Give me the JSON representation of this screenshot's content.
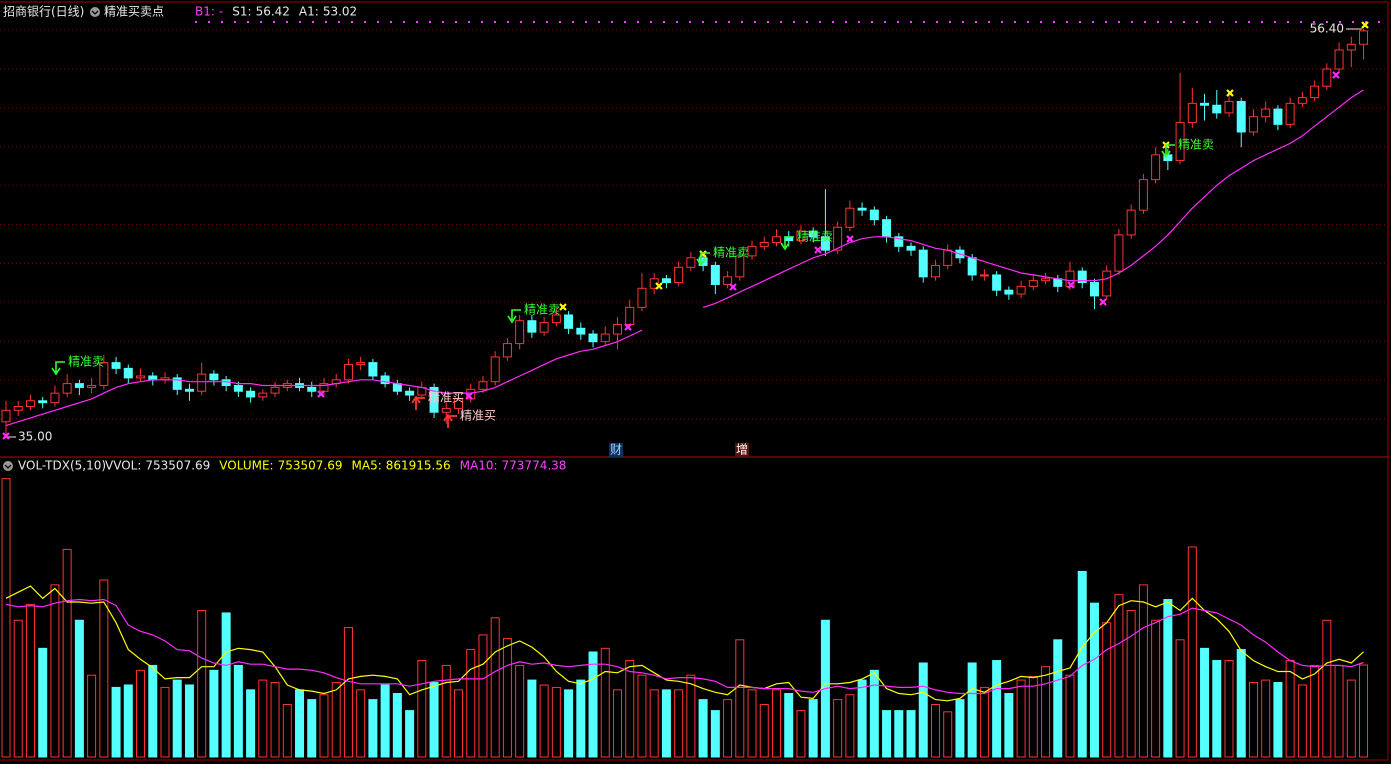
{
  "chart_data": [
    {
      "type": "candlestick",
      "title": "招商银行(日线)",
      "indicator": "精准买卖点",
      "legend": [
        {
          "label": "B1:",
          "value": "-",
          "color": "#ff40ff"
        },
        {
          "label": "S1:",
          "value": 56.42,
          "color": "#e8e8e8"
        },
        {
          "label": "A1:",
          "value": 53.02,
          "color": "#e8e8e8"
        }
      ],
      "open": [
        35.8,
        36.4,
        36.6,
        36.9,
        36.8,
        37.3,
        37.8,
        37.6,
        37.7,
        38.9,
        38.6,
        38.1,
        38.2,
        38.0,
        38.1,
        37.5,
        37.4,
        38.3,
        38.0,
        37.7,
        37.4,
        37.1,
        37.3,
        37.6,
        37.8,
        37.6,
        37.4,
        37.8,
        38.0,
        38.8,
        38.9,
        38.2,
        37.8,
        37.4,
        37.2,
        37.6,
        36.3,
        36.5,
        37.0,
        37.5,
        37.9,
        39.2,
        39.9,
        41.1,
        40.5,
        41.0,
        41.4,
        40.7,
        40.4,
        40.0,
        40.4,
        40.9,
        41.8,
        42.8,
        43.3,
        43.1,
        43.9,
        44.4,
        44.0,
        43.0,
        43.4,
        44.5,
        45.0,
        45.2,
        45.5,
        45.3,
        45.8,
        45.5,
        44.8,
        46.0,
        47.0,
        46.9,
        46.4,
        45.5,
        45.0,
        44.8,
        43.4,
        44.0,
        44.8,
        44.4,
        43.5,
        43.5,
        42.7,
        42.5,
        42.9,
        43.2,
        43.3,
        42.9,
        43.7,
        43.1,
        42.4,
        43.7,
        45.6,
        46.9,
        48.5,
        49.8,
        49.5,
        51.5,
        52.5,
        52.4,
        52.0,
        52.6,
        51.0,
        51.8,
        52.2,
        51.4,
        52.5,
        52.8,
        53.4,
        54.3,
        55.3,
        55.6
      ],
      "high": [
        36.9,
        36.9,
        37.2,
        37.1,
        37.7,
        38.3,
        38.0,
        38.1,
        39.3,
        39.2,
        38.8,
        38.6,
        38.4,
        38.4,
        38.3,
        37.8,
        38.9,
        38.5,
        38.2,
        37.9,
        37.6,
        37.5,
        37.9,
        38.0,
        38.1,
        37.9,
        38.1,
        38.3,
        39.1,
        39.2,
        39.1,
        38.4,
        38.0,
        37.6,
        37.9,
        37.8,
        36.8,
        37.3,
        37.8,
        38.2,
        39.5,
        40.2,
        41.4,
        41.4,
        41.3,
        41.8,
        41.6,
        41.0,
        40.6,
        40.8,
        41.3,
        42.2,
        43.6,
        43.6,
        43.5,
        44.2,
        44.7,
        44.6,
        44.2,
        43.7,
        44.8,
        45.3,
        45.5,
        45.9,
        45.8,
        46.1,
        46.0,
        48.0,
        46.3,
        47.4,
        47.3,
        47.1,
        46.6,
        45.7,
        45.2,
        45.0,
        44.3,
        45.1,
        45.0,
        44.6,
        43.8,
        43.7,
        42.9,
        43.2,
        43.5,
        43.6,
        43.5,
        44.2,
        43.9,
        43.3,
        44.0,
        45.9,
        47.2,
        48.8,
        50.2,
        50.1,
        54.1,
        53.3,
        53.0,
        53.2,
        53.0,
        52.8,
        52.2,
        52.6,
        52.4,
        52.8,
        53.1,
        53.7,
        54.6,
        55.7,
        56.0,
        56.4
      ],
      "low": [
        35.0,
        36.1,
        36.4,
        36.5,
        36.6,
        37.1,
        37.2,
        37.3,
        37.5,
        38.3,
        37.8,
        37.9,
        37.7,
        37.8,
        37.2,
        36.9,
        37.2,
        37.7,
        37.4,
        37.1,
        36.8,
        36.9,
        37.1,
        37.4,
        37.4,
        37.1,
        37.2,
        37.6,
        37.8,
        38.5,
        38.0,
        37.6,
        37.2,
        36.9,
        37.0,
        36.0,
        35.7,
        36.2,
        36.8,
        37.3,
        37.7,
        39.0,
        39.6,
        40.2,
        40.3,
        40.8,
        40.4,
        40.1,
        39.7,
        39.8,
        39.6,
        40.7,
        41.6,
        42.5,
        42.8,
        42.9,
        43.7,
        43.7,
        42.5,
        42.8,
        43.2,
        44.3,
        44.8,
        45.0,
        45.0,
        45.1,
        45.2,
        44.5,
        44.6,
        45.8,
        46.6,
        46.1,
        45.2,
        44.7,
        44.5,
        43.1,
        43.2,
        43.8,
        44.1,
        43.2,
        43.2,
        42.4,
        42.2,
        42.3,
        42.7,
        43.0,
        42.6,
        42.7,
        42.8,
        41.7,
        42.2,
        43.5,
        45.4,
        46.7,
        48.3,
        49.0,
        49.3,
        51.2,
        51.6,
        51.7,
        51.8,
        50.2,
        50.8,
        51.5,
        51.1,
        51.2,
        52.3,
        52.6,
        53.2,
        54.1,
        54.4,
        54.8
      ],
      "close": [
        36.4,
        36.6,
        36.9,
        36.8,
        37.3,
        37.8,
        37.6,
        37.7,
        38.9,
        38.6,
        38.1,
        38.2,
        38.0,
        38.1,
        37.5,
        37.4,
        38.3,
        38.0,
        37.7,
        37.4,
        37.1,
        37.3,
        37.6,
        37.8,
        37.6,
        37.4,
        37.8,
        38.0,
        38.8,
        38.9,
        38.2,
        37.8,
        37.4,
        37.2,
        37.6,
        36.3,
        36.5,
        37.0,
        37.5,
        37.9,
        39.2,
        39.9,
        41.1,
        40.5,
        41.0,
        41.4,
        40.7,
        40.4,
        40.0,
        40.4,
        40.9,
        41.8,
        42.8,
        43.3,
        43.1,
        43.9,
        44.4,
        44.0,
        43.0,
        43.4,
        44.5,
        45.0,
        45.2,
        45.5,
        45.3,
        45.8,
        45.5,
        44.8,
        46.0,
        47.0,
        46.9,
        46.4,
        45.5,
        45.0,
        44.8,
        43.4,
        44.0,
        44.8,
        44.4,
        43.5,
        43.5,
        42.7,
        42.5,
        42.9,
        43.2,
        43.3,
        42.9,
        43.7,
        43.1,
        42.4,
        43.7,
        45.6,
        46.9,
        48.5,
        49.8,
        49.5,
        51.5,
        52.5,
        52.4,
        52.0,
        52.6,
        51.0,
        51.8,
        52.2,
        51.4,
        52.5,
        52.8,
        53.4,
        54.3,
        55.3,
        55.6,
        56.3
      ],
      "ma": [
        35.6,
        35.8,
        36.0,
        36.2,
        36.4,
        36.6,
        36.8,
        37.0,
        37.3,
        37.6,
        37.8,
        37.9,
        38.0,
        38.0,
        38.0,
        37.9,
        37.9,
        37.9,
        37.9,
        37.8,
        37.8,
        37.7,
        37.7,
        37.7,
        37.7,
        37.7,
        37.7,
        37.8,
        37.9,
        38.0,
        38.0,
        37.9,
        37.8,
        37.7,
        37.6,
        37.4,
        37.3,
        37.3,
        37.3,
        37.4,
        37.6,
        37.9,
        38.2,
        38.5,
        38.8,
        39.1,
        39.3,
        39.5,
        39.6,
        39.8,
        40.0,
        40.3,
        40.6,
        null,
        null,
        null,
        null,
        41.8,
        42.0,
        42.3,
        42.6,
        42.9,
        43.2,
        43.5,
        43.8,
        44.1,
        44.4,
        44.6,
        44.9,
        45.2,
        45.4,
        45.5,
        45.5,
        45.4,
        45.3,
        45.1,
        44.9,
        44.8,
        44.6,
        44.4,
        44.2,
        44.0,
        43.8,
        43.6,
        43.5,
        43.4,
        43.3,
        43.2,
        43.2,
        43.2,
        43.3,
        43.6,
        44.0,
        44.5,
        45.0,
        45.6,
        46.3,
        47.0,
        47.6,
        48.2,
        48.7,
        49.1,
        49.5,
        49.8,
        50.1,
        50.4,
        50.8,
        51.3,
        51.8,
        52.3,
        52.8,
        53.2
      ],
      "ma_color": "#ff2cff",
      "up_color": "#ff3232",
      "down_color": "#54ffff",
      "ylim": [
        35,
        56.4
      ],
      "yticks": [
        {
          "value": 35,
          "label": "35.00"
        },
        {
          "value": 56.4,
          "label": "56.40"
        }
      ],
      "grid": true,
      "annotations": [
        "精准卖",
        "精准卖",
        "精准卖",
        "精准卖",
        "精准卖",
        "精准买",
        "精准买",
        "财",
        "增"
      ]
    },
    {
      "type": "volume",
      "title": "VOL-TDX(5,10)",
      "legend": [
        {
          "label": "VVOL:",
          "value": 753507.69,
          "color": "#e8e8e8"
        },
        {
          "label": "VOLUME:",
          "value": 753507.69,
          "color": "#ffff00"
        },
        {
          "label": "MA5:",
          "value": 861915.56,
          "color": "#ffff00"
        },
        {
          "label": "MA10:",
          "value": 773774.38,
          "color": "#ff40ff"
        }
      ],
      "values": [
        2280000,
        1120000,
        1250000,
        890000,
        1410000,
        1700000,
        1120000,
        670000,
        1450000,
        570000,
        590000,
        710000,
        750000,
        570000,
        630000,
        590000,
        1200000,
        710000,
        1180000,
        750000,
        550000,
        630000,
        610000,
        430000,
        550000,
        470000,
        510000,
        610000,
        1060000,
        550000,
        470000,
        590000,
        520000,
        380000,
        790000,
        610000,
        750000,
        550000,
        880000,
        1000000,
        1140000,
        970000,
        750000,
        630000,
        590000,
        570000,
        550000,
        630000,
        860000,
        890000,
        550000,
        790000,
        670000,
        550000,
        550000,
        550000,
        670000,
        470000,
        380000,
        470000,
        960000,
        550000,
        430000,
        550000,
        520000,
        380000,
        470000,
        1120000,
        470000,
        510000,
        630000,
        710000,
        380000,
        380000,
        380000,
        770000,
        430000,
        370000,
        470000,
        770000,
        570000,
        790000,
        520000,
        630000,
        660000,
        740000,
        960000,
        670000,
        1520000,
        1260000,
        1100000,
        1330000,
        1200000,
        1410000,
        1120000,
        1290000,
        960000,
        1720000,
        890000,
        790000,
        790000,
        880000,
        610000,
        630000,
        610000,
        790000,
        590000,
        750000,
        1120000,
        750000,
        630000,
        753507.69
      ],
      "ma5": [
        1300000,
        1350000,
        1400000,
        1300000,
        1380000,
        1270000,
        1270000,
        1260000,
        1270000,
        1100000,
        880000,
        800000,
        730000,
        640000,
        650000,
        650000,
        740000,
        740000,
        860000,
        890000,
        880000,
        860000,
        740000,
        590000,
        550000,
        540000,
        520000,
        550000,
        640000,
        660000,
        670000,
        660000,
        640000,
        510000,
        550000,
        580000,
        610000,
        620000,
        720000,
        760000,
        860000,
        910000,
        950000,
        900000,
        820000,
        700000,
        620000,
        600000,
        640000,
        700000,
        690000,
        740000,
        750000,
        690000,
        630000,
        620000,
        600000,
        560000,
        530000,
        510000,
        590000,
        570000,
        560000,
        600000,
        610000,
        490000,
        480000,
        600000,
        600000,
        610000,
        640000,
        690000,
        560000,
        520000,
        510000,
        530000,
        470000,
        460000,
        480000,
        560000,
        530000,
        590000,
        620000,
        660000,
        650000,
        670000,
        700000,
        730000,
        900000,
        1020000,
        1100000,
        1240000,
        1280000,
        1270000,
        1230000,
        1270000,
        1200000,
        1300000,
        1200000,
        1130000,
        1030000,
        870000,
        790000,
        740000,
        700000,
        700000,
        640000,
        680000,
        770000,
        800000,
        770000,
        861915.56
      ],
      "ma10": [
        1250000,
        1230000,
        1240000,
        1230000,
        1260000,
        1280000,
        1290000,
        1280000,
        1290000,
        1240000,
        1080000,
        1030000,
        1000000,
        950000,
        880000,
        870000,
        810000,
        770000,
        750000,
        780000,
        760000,
        760000,
        740000,
        720000,
        720000,
        710000,
        690000,
        650000,
        620000,
        600000,
        600000,
        600000,
        600000,
        580000,
        600000,
        620000,
        630000,
        640000,
        640000,
        640000,
        700000,
        750000,
        780000,
        760000,
        770000,
        750000,
        740000,
        750000,
        760000,
        760000,
        740000,
        700000,
        690000,
        670000,
        640000,
        650000,
        650000,
        640000,
        620000,
        570000,
        570000,
        570000,
        560000,
        560000,
        560000,
        540000,
        530000,
        560000,
        580000,
        560000,
        570000,
        590000,
        580000,
        570000,
        570000,
        580000,
        550000,
        530000,
        520000,
        520000,
        520000,
        560000,
        560000,
        580000,
        580000,
        600000,
        630000,
        660000,
        750000,
        800000,
        880000,
        930000,
        990000,
        1060000,
        1100000,
        1150000,
        1170000,
        1220000,
        1200000,
        1180000,
        1130000,
        1080000,
        1000000,
        940000,
        860000,
        790000,
        750000,
        740000,
        750000,
        750000,
        740000,
        773774.38
      ],
      "ma5_color": "#ffff00",
      "ma10_color": "#ff2cff",
      "ylim": [
        0,
        2400000
      ]
    }
  ]
}
